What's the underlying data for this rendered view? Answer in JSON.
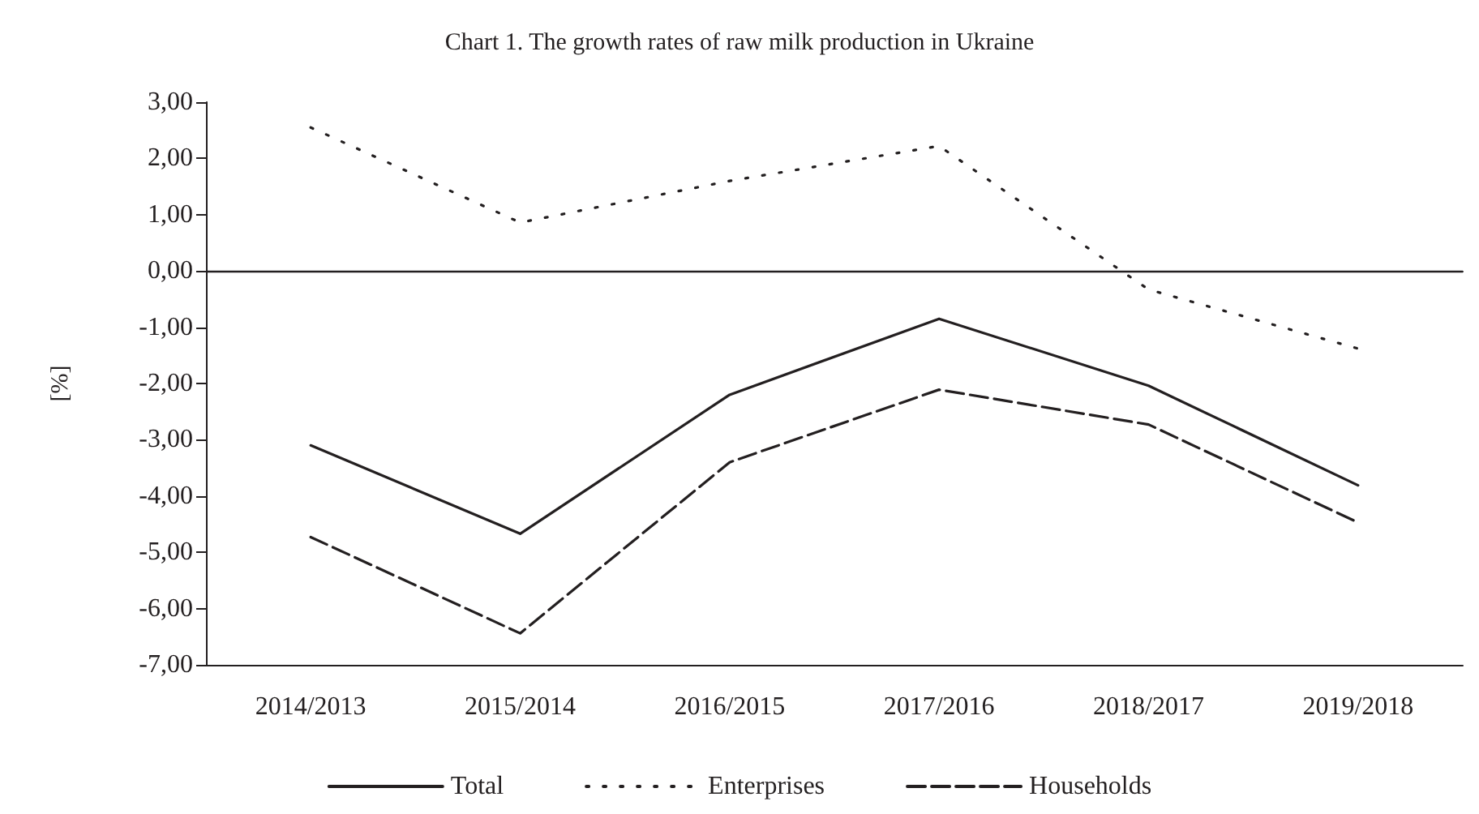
{
  "chart_data": {
    "type": "line",
    "title": "Chart 1. The growth rates of raw milk production in Ukraine",
    "ylabel": "[%]",
    "categories": [
      "2014/2013",
      "2015/2014",
      "2016/2015",
      "2017/2016",
      "2018/2017",
      "2019/2018"
    ],
    "series": [
      {
        "name": "Total",
        "color": "#231f20",
        "line_style": "solid",
        "values": [
          -3.1,
          -4.67,
          -2.2,
          -0.85,
          -2.04,
          -3.81
        ]
      },
      {
        "name": "Enterprises",
        "color": "#231f20",
        "line_style": "dotted",
        "values": [
          2.55,
          0.86,
          1.6,
          2.22,
          -0.33,
          -1.38
        ]
      },
      {
        "name": "Households",
        "color": "#231f20",
        "line_style": "dashed",
        "values": [
          -4.73,
          -6.44,
          -3.4,
          -2.11,
          -2.73,
          -4.47
        ]
      }
    ],
    "ylim": [
      -7,
      3
    ],
    "yticks": [
      {
        "value": 3,
        "label": "3,00"
      },
      {
        "value": 2,
        "label": "2,00"
      },
      {
        "value": 1,
        "label": "1,00"
      },
      {
        "value": 0,
        "label": "0,00"
      },
      {
        "value": -1,
        "label": "-1,00"
      },
      {
        "value": -2,
        "label": "-2,00"
      },
      {
        "value": -3,
        "label": "-3,00"
      },
      {
        "value": -4,
        "label": "-4,00"
      },
      {
        "value": -5,
        "label": "-5,00"
      },
      {
        "value": -6,
        "label": "-6,00"
      },
      {
        "value": -7,
        "label": "-7,00"
      }
    ],
    "ref_lines": [
      {
        "axis": "y",
        "value": 0,
        "color": "#231f20"
      }
    ],
    "grid": false,
    "legend": "bottom",
    "marker": "none"
  }
}
